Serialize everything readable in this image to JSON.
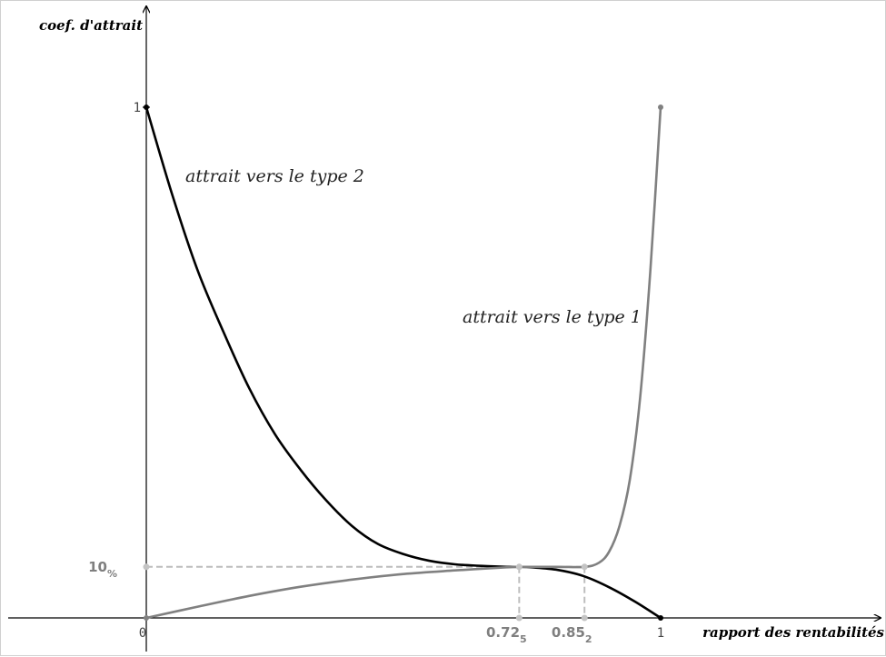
{
  "chart_data": {
    "type": "line",
    "xlabel": "rapport des rentabilités",
    "ylabel": "coef. d'attrait",
    "xlim": [
      -0.27,
      1.42
    ],
    "ylim": [
      -0.055,
      1.12
    ],
    "grid": false,
    "x_tick_labels": [
      "0",
      "1"
    ],
    "y_tick_labels": [
      "1"
    ],
    "special_ticks": {
      "x": [
        {
          "value": 0.725,
          "main": "0.72",
          "sub": "5"
        },
        {
          "value": 0.852,
          "main": "0.85",
          "sub": "2"
        }
      ],
      "y": {
        "value": 0.1,
        "main": "10",
        "sub": "%"
      }
    },
    "series": [
      {
        "name": "attrait vers le type 2",
        "color": "#000000",
        "x": [
          0,
          0.05,
          0.1,
          0.15,
          0.2,
          0.25,
          0.3,
          0.35,
          0.4,
          0.45,
          0.5,
          0.55,
          0.6,
          0.65,
          0.7,
          0.725,
          0.75,
          0.8,
          0.85,
          0.9,
          0.95,
          1
        ],
        "y": [
          1,
          0.83,
          0.68,
          0.56,
          0.45,
          0.36,
          0.29,
          0.23,
          0.18,
          0.145,
          0.125,
          0.112,
          0.105,
          0.102,
          0.1,
          0.1,
          0.099,
          0.094,
          0.082,
          0.06,
          0.032,
          0
        ]
      },
      {
        "name": "attrait vers le type 1",
        "color": "#808080",
        "x": [
          0,
          0.1,
          0.2,
          0.3,
          0.4,
          0.5,
          0.6,
          0.7,
          0.725,
          0.8,
          0.852,
          0.88,
          0.9,
          0.92,
          0.94,
          0.96,
          0.98,
          1
        ],
        "y": [
          0,
          0.022,
          0.043,
          0.061,
          0.075,
          0.086,
          0.093,
          0.099,
          0.1,
          0.1,
          0.1,
          0.108,
          0.13,
          0.18,
          0.27,
          0.43,
          0.68,
          1
        ]
      }
    ]
  }
}
